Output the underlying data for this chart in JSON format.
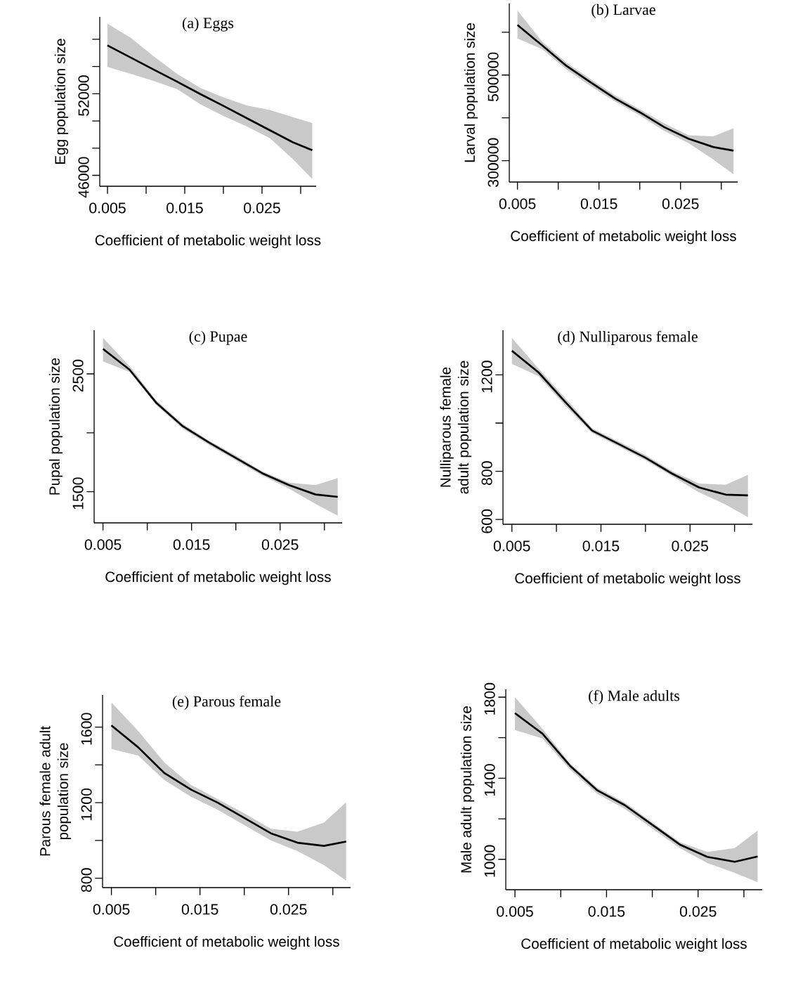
{
  "chart_data": [
    {
      "type": "line",
      "title": "(a) Eggs",
      "xlabel": "Coefficient of metabolic weight loss",
      "ylabel": "Egg population size",
      "x": [
        0.005,
        0.008,
        0.011,
        0.014,
        0.017,
        0.02,
        0.023,
        0.026,
        0.029,
        0.0315
      ],
      "series": [
        {
          "color": "#000000",
          "values": [
            55550,
            54660,
            53770,
            52890,
            51980,
            51110,
            50210,
            49320,
            48430,
            47850
          ],
          "upper": [
            57150,
            56120,
            54750,
            53460,
            52430,
            51740,
            51140,
            50800,
            50280,
            49850
          ],
          "lower": [
            53970,
            53460,
            52940,
            52340,
            51230,
            50370,
            49600,
            48740,
            47190,
            45730
          ]
        }
      ],
      "xlim": [
        0.004,
        0.032
      ],
      "ylim": [
        45200,
        57650
      ],
      "xticks": [
        0.005,
        {
          "value": 0.01,
          "label": null
        },
        0.015,
        {
          "value": 0.02,
          "label": null
        },
        0.025,
        {
          "value": 0.03,
          "label": null
        }
      ],
      "yticks": [
        46000,
        {
          "value": 48000,
          "label": null
        },
        {
          "value": 50000,
          "label": null
        },
        52000,
        {
          "value": 54000,
          "label": null
        },
        {
          "value": 56000,
          "label": null
        }
      ]
    },
    {
      "type": "line",
      "title": "(b) Larvae",
      "xlabel": "Coefficient of metabolic weight loss",
      "ylabel": "Larval population size",
      "x": [
        0.005,
        0.008,
        0.011,
        0.014,
        0.017,
        0.02,
        0.023,
        0.026,
        0.029,
        0.0315
      ],
      "series": [
        {
          "color": "#000000",
          "values": [
            617100,
            569600,
            521400,
            482600,
            444900,
            413000,
            378300,
            351000,
            331900,
            323200
          ],
          "upper": [
            650700,
            578300,
            529000,
            490100,
            451900,
            420000,
            386900,
            359100,
            356800,
            375400
          ],
          "lower": [
            585200,
            560900,
            513300,
            473900,
            437400,
            405500,
            369600,
            340600,
            302900,
            268100
          ]
        }
      ],
      "xlim": [
        0.004,
        0.032
      ],
      "ylim": [
        250000,
        667000
      ],
      "xticks": [
        0.005,
        {
          "value": 0.01,
          "label": null
        },
        0.015,
        {
          "value": 0.02,
          "label": null
        },
        0.025,
        {
          "value": 0.03,
          "label": null
        }
      ],
      "yticks": [
        300000,
        {
          "value": 400000,
          "label": null
        },
        500000,
        {
          "value": 600000,
          "label": null
        }
      ]
    },
    {
      "type": "line",
      "title": "(c) Pupae",
      "xlabel": "Coefficient of metabolic weight loss",
      "ylabel": "Pupal population size",
      "x": [
        0.005,
        0.008,
        0.011,
        0.014,
        0.017,
        0.02,
        0.023,
        0.026,
        0.029,
        0.0315
      ],
      "series": [
        {
          "color": "#000000",
          "values": [
            2712,
            2536,
            2256,
            2056,
            1916,
            1786,
            1656,
            1556,
            1476,
            1456
          ],
          "upper": [
            2806,
            2566,
            2276,
            2076,
            1932,
            1806,
            1672,
            1576,
            1556,
            1616
          ],
          "lower": [
            2606,
            2516,
            2236,
            2036,
            1896,
            1766,
            1636,
            1526,
            1396,
            1296
          ]
        }
      ],
      "xlim": [
        0.004,
        0.032
      ],
      "ylim": [
        1235,
        2870
      ],
      "xticks": [
        0.005,
        {
          "value": 0.01,
          "label": null
        },
        0.015,
        {
          "value": 0.02,
          "label": null
        },
        0.025,
        {
          "value": 0.03,
          "label": null
        }
      ],
      "yticks": [
        1500,
        {
          "value": 2000,
          "label": null
        },
        2500
      ]
    },
    {
      "type": "line",
      "title": "(d) Nulliparous female",
      "xlabel": "Coefficient of metabolic weight loss",
      "ylabel": "Nulliparous female adult population size",
      "x": [
        0.005,
        0.008,
        0.011,
        0.014,
        0.017,
        0.02,
        0.023,
        0.026,
        0.029,
        0.0315
      ],
      "series": [
        {
          "color": "#000000",
          "values": [
            1300,
            1210,
            1087,
            969,
            913,
            856,
            790,
            733,
            703,
            700
          ],
          "upper": [
            1354,
            1226,
            1103,
            979,
            923,
            867,
            800,
            749,
            744,
            785
          ],
          "lower": [
            1246,
            1195,
            1072,
            959,
            903,
            846,
            780,
            713,
            662,
            610
          ]
        }
      ],
      "xlim": [
        0.004,
        0.032
      ],
      "ylim": [
        580,
        1385
      ],
      "xticks": [
        0.005,
        {
          "value": 0.01,
          "label": null
        },
        0.015,
        {
          "value": 0.02,
          "label": null
        },
        0.025,
        {
          "value": 0.03,
          "label": null
        }
      ],
      "yticks": [
        600,
        800,
        {
          "value": 1000,
          "label": null
        },
        1200
      ]
    },
    {
      "type": "line",
      "title": "(e) Parous female",
      "xlabel": "Coefficient of metabolic weight loss",
      "ylabel": "Parous female adult population size",
      "x": [
        0.005,
        0.008,
        0.011,
        0.014,
        0.017,
        0.02,
        0.023,
        0.026,
        0.029,
        0.0315
      ],
      "series": [
        {
          "color": "#000000",
          "values": [
            1609,
            1494,
            1356,
            1269,
            1200,
            1119,
            1038,
            988,
            971,
            994
          ],
          "upper": [
            1731,
            1581,
            1412,
            1294,
            1219,
            1144,
            1062,
            1046,
            1094,
            1202
          ],
          "lower": [
            1484,
            1450,
            1319,
            1231,
            1162,
            1081,
            1000,
            944,
            869,
            787
          ]
        }
      ],
      "xlim": [
        0.004,
        0.032
      ],
      "ylim": [
        750,
        1770
      ],
      "xticks": [
        0.005,
        {
          "value": 0.01,
          "label": null
        },
        0.015,
        {
          "value": 0.02,
          "label": null
        },
        0.025,
        {
          "value": 0.03,
          "label": null
        }
      ],
      "yticks": [
        800,
        {
          "value": 1000,
          "label": null
        },
        1200,
        {
          "value": 1400,
          "label": null
        },
        1600
      ]
    },
    {
      "type": "line",
      "title": "(f) Male adults",
      "xlabel": "Coefficient of metabolic weight loss",
      "ylabel": "Male adult population size",
      "x": [
        0.005,
        0.008,
        0.011,
        0.014,
        0.017,
        0.02,
        0.023,
        0.026,
        0.029,
        0.0315
      ],
      "series": [
        {
          "color": "#000000",
          "values": [
            1721,
            1620,
            1462,
            1340,
            1267,
            1170,
            1073,
            1012,
            988,
            1014
          ],
          "upper": [
            1800,
            1644,
            1474,
            1353,
            1280,
            1182,
            1085,
            1036,
            1055,
            1142
          ],
          "lower": [
            1638,
            1596,
            1444,
            1322,
            1249,
            1152,
            1055,
            982,
            933,
            887
          ]
        }
      ],
      "xlim": [
        0.004,
        0.032
      ],
      "ylim": [
        850,
        1838
      ],
      "xticks": [
        0.005,
        {
          "value": 0.01,
          "label": null
        },
        0.015,
        {
          "value": 0.02,
          "label": null
        },
        0.025,
        {
          "value": 0.03,
          "label": null
        }
      ],
      "yticks": [
        1000,
        {
          "value": 1200,
          "label": null
        },
        1400,
        {
          "value": 1600,
          "label": null
        },
        1800
      ]
    }
  ]
}
